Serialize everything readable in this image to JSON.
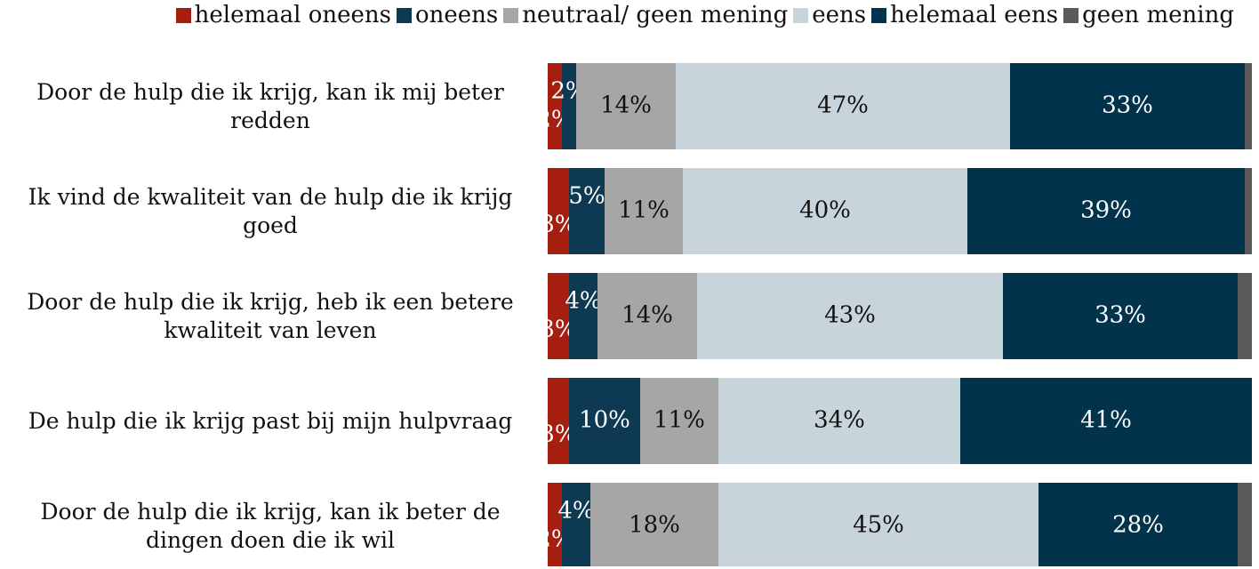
{
  "chart_data": {
    "type": "stacked-bar-horizontal",
    "categories": [
      "Door de hulp die ik krijg, kan ik mij beter redden",
      "Ik vind de kwaliteit van de hulp die ik krijg goed",
      "Door de hulp die ik krijg, heb ik een betere kwaliteit van leven",
      "De hulp die ik krijg past bij mijn hulpvraag",
      "Door de hulp die ik krijg, kan ik beter de dingen doen die ik wil"
    ],
    "series": [
      {
        "name": "helemaal oneens",
        "color": "#a61e10",
        "values": [
          2,
          3,
          3,
          3,
          2
        ],
        "value_labels": [
          "2%",
          "3%",
          "3%",
          "3%",
          "2%"
        ]
      },
      {
        "name": "oneens",
        "color": "#0d3a52",
        "values": [
          2,
          5,
          4,
          10,
          4
        ],
        "value_labels": [
          "2%",
          "5%",
          "4%",
          "10%",
          "4%"
        ]
      },
      {
        "name": "neutraal/ geen mening",
        "color": "#a6a6a6",
        "values": [
          14,
          11,
          14,
          11,
          18
        ],
        "value_labels": [
          "14%",
          "11%",
          "14%",
          "11%",
          "18%"
        ]
      },
      {
        "name": "eens",
        "color": "#c8d4db",
        "values": [
          47,
          40,
          43,
          34,
          45
        ],
        "value_labels": [
          "47%",
          "40%",
          "43%",
          "34%",
          "45%"
        ]
      },
      {
        "name": "helemaal eens",
        "color": "#02334c",
        "values": [
          33,
          39,
          33,
          41,
          28
        ],
        "value_labels": [
          "33%",
          "39%",
          "33%",
          "41%",
          "28%"
        ]
      },
      {
        "name": "geen mening",
        "color": "#5a5a5a",
        "values": [
          1,
          1,
          2,
          0,
          2
        ]
      }
    ],
    "xlim": [
      0,
      100
    ]
  }
}
